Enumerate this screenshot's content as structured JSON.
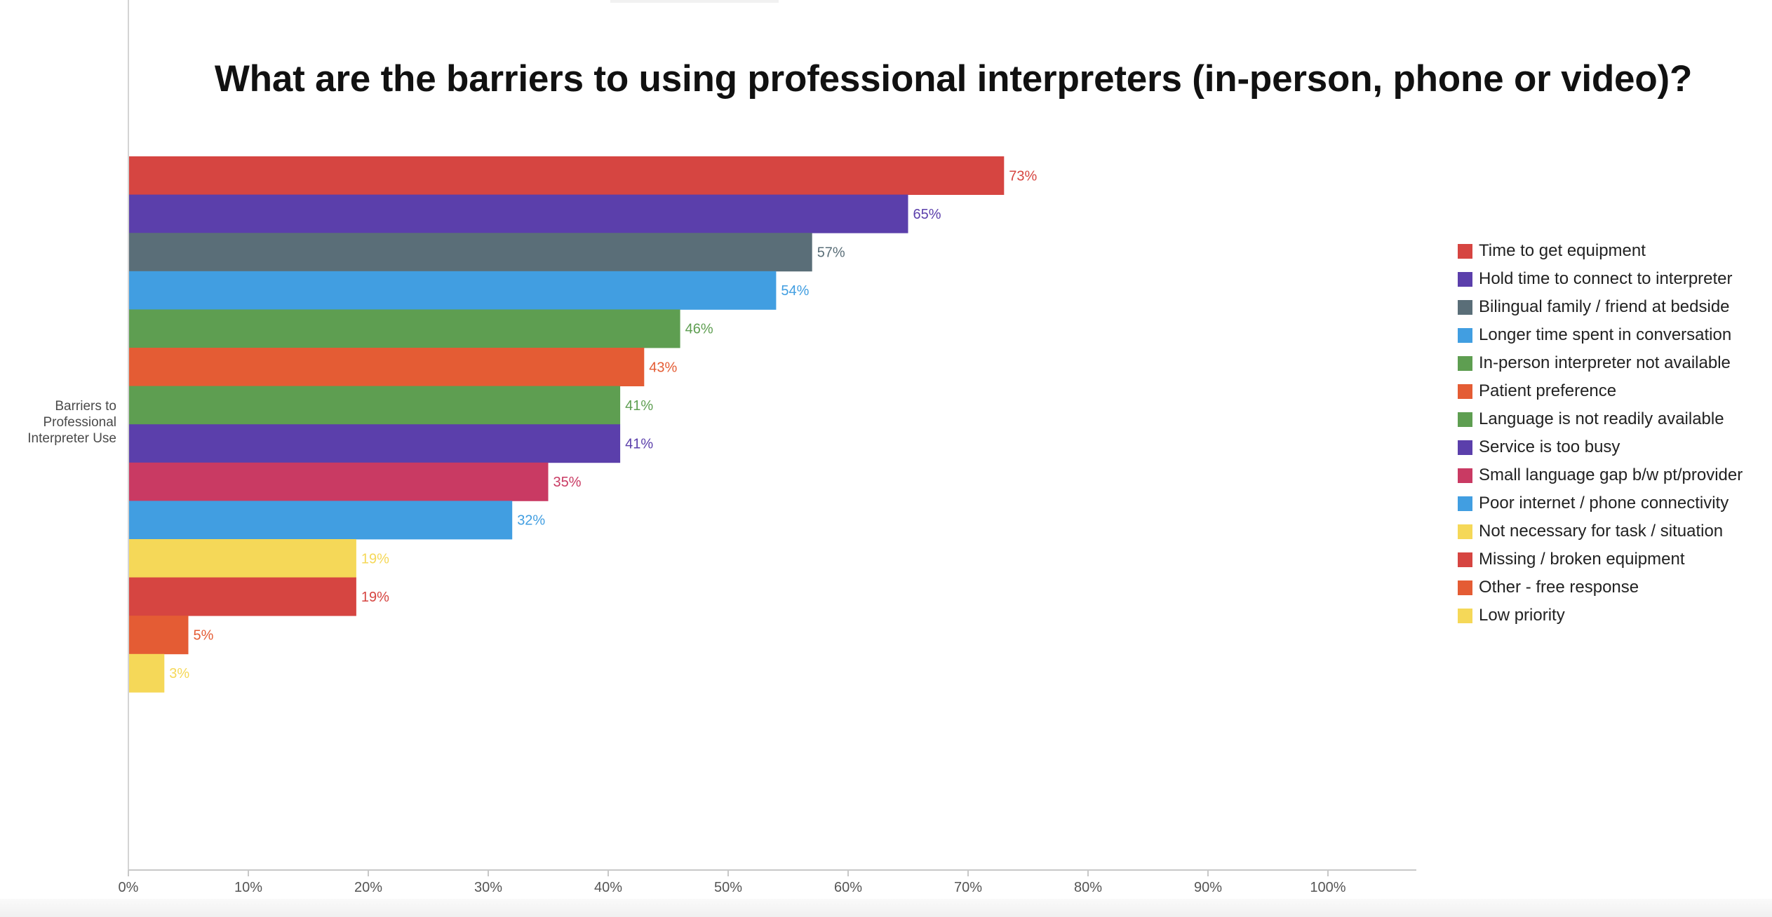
{
  "chart_data": {
    "type": "bar",
    "orientation": "horizontal",
    "title": "What are the barriers to using professional interpreters (in-person, phone or video)?",
    "ylabel": "Barriers to Professional Interpreter Use",
    "xlabel": "",
    "xlim": [
      0,
      107
    ],
    "x_ticks": [
      "0%",
      "10%",
      "20%",
      "30%",
      "40%",
      "50%",
      "60%",
      "70%",
      "80%",
      "90%",
      "100%"
    ],
    "grid": false,
    "legend_position": "right",
    "series": [
      {
        "name": "Time to get equipment",
        "value": 73,
        "label": "73%",
        "color": "#d64541"
      },
      {
        "name": "Hold time to connect to interpreter",
        "value": 65,
        "label": "65%",
        "color": "#5b3fab"
      },
      {
        "name": "Bilingual family / friend at bedside",
        "value": 57,
        "label": "57%",
        "color": "#5a6e78"
      },
      {
        "name": "Longer time spent in conversation",
        "value": 54,
        "label": "54%",
        "color": "#419ee1"
      },
      {
        "name": "In-person interpreter not available",
        "value": 46,
        "label": "46%",
        "color": "#5e9e51"
      },
      {
        "name": "Patient preference",
        "value": 43,
        "label": "43%",
        "color": "#e45c34"
      },
      {
        "name": "Language is not readily available",
        "value": 41,
        "label": "41%",
        "color": "#5e9e51"
      },
      {
        "name": "Service is too busy",
        "value": 41,
        "label": "41%",
        "color": "#5b3fab"
      },
      {
        "name": "Small language gap b/w pt/provider",
        "value": 35,
        "label": "35%",
        "color": "#c93a63"
      },
      {
        "name": "Poor internet / phone connectivity",
        "value": 32,
        "label": "32%",
        "color": "#419ee1"
      },
      {
        "name": "Not necessary for task / situation",
        "value": 19,
        "label": "19%",
        "color": "#f5d858"
      },
      {
        "name": "Missing / broken equipment",
        "value": 19,
        "label": "19%",
        "color": "#d64541"
      },
      {
        "name": "Other - free response",
        "value": 5,
        "label": "5%",
        "color": "#e45c34"
      },
      {
        "name": "Low priority",
        "value": 3,
        "label": "3%",
        "color": "#f5d858"
      }
    ]
  }
}
